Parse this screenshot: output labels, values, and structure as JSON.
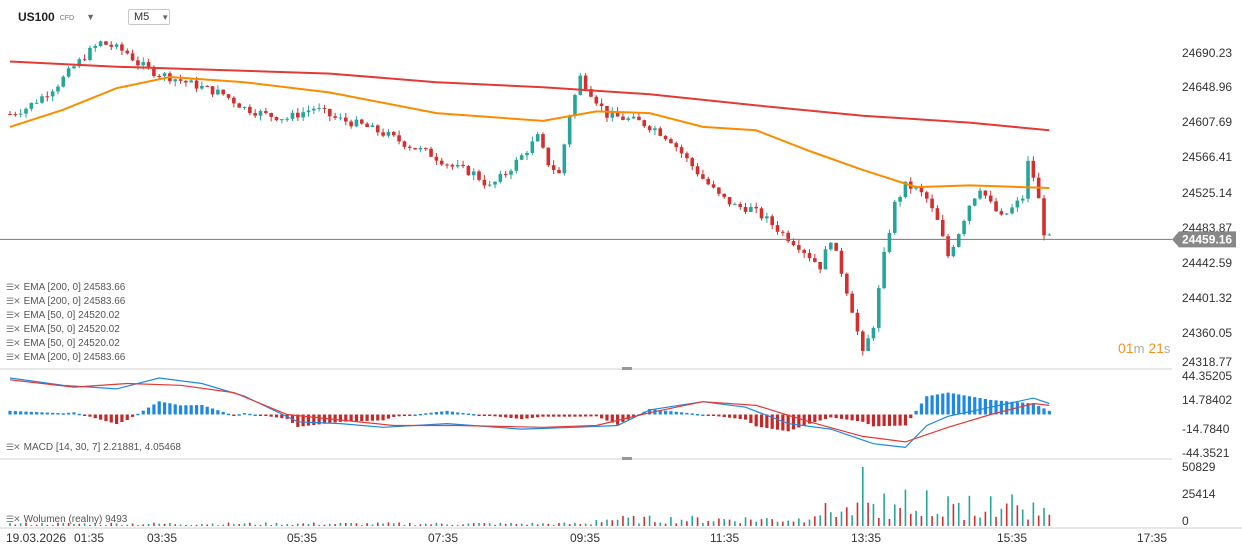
{
  "header": {
    "symbol": "US100",
    "symbol_tag": "CFD",
    "timeframe": "M5"
  },
  "countdown": {
    "minutes": "01",
    "m_unit": "m",
    "seconds": "21",
    "s_unit": "s"
  },
  "legend": {
    "ema": [
      "EMA [200, 0]  24583.66",
      "EMA [200, 0]  24583.66",
      "EMA [50, 0]  24520.02",
      "EMA [50, 0]  24520.02",
      "EMA [50, 0]  24520.02",
      "EMA [200, 0]  24583.66"
    ],
    "macd": "MACD [14, 30, 7]  2.21881,  4.05468",
    "volume": "Wolumen (realny)  9493"
  },
  "colors": {
    "up": "#26a69a",
    "down": "#d32f2f",
    "ema200": "#e53935",
    "ema50": "#fb8c00",
    "macd": "#1e88e5",
    "signal": "#e53935",
    "hist_pos": "#1e88e5",
    "hist_neg": "#c62828"
  },
  "chart_data": {
    "type": "candlestick",
    "symbol": "US100",
    "timeframe": "M5",
    "x_ticks": [
      "19.03.2026",
      "01:35",
      "03:35",
      "05:35",
      "07:35",
      "09:35",
      "11:35",
      "13:35",
      "15:35",
      "17:35"
    ],
    "price_ticks": [
      "24690.23",
      "24648.96",
      "24607.69",
      "24566.41",
      "24525.14",
      "24483.87",
      "24442.59",
      "24401.32",
      "24360.05",
      "24318.77"
    ],
    "price_range": [
      24312,
      24705
    ],
    "current_price": "24459.16",
    "price_path": [
      [
        0,
        24605
      ],
      [
        3,
        24612
      ],
      [
        6,
        24625
      ],
      [
        9,
        24640
      ],
      [
        12,
        24660
      ],
      [
        15,
        24678
      ],
      [
        17,
        24688
      ],
      [
        19,
        24684
      ],
      [
        22,
        24676
      ],
      [
        24,
        24664
      ],
      [
        27,
        24654
      ],
      [
        31,
        24646
      ],
      [
        36,
        24636
      ],
      [
        40,
        24628
      ],
      [
        44,
        24612
      ],
      [
        48,
        24604
      ],
      [
        52,
        24600
      ],
      [
        57,
        24612
      ],
      [
        61,
        24600
      ],
      [
        66,
        24592
      ],
      [
        71,
        24580
      ],
      [
        75,
        24568
      ],
      [
        79,
        24558
      ],
      [
        83,
        24544
      ],
      [
        87,
        24536
      ],
      [
        90,
        24520
      ],
      [
        93,
        24536
      ],
      [
        96,
        24556
      ],
      [
        99,
        24578
      ],
      [
        100,
        24562
      ],
      [
        101,
        24548
      ],
      [
        103,
        24535
      ],
      [
        105,
        24605
      ],
      [
        107,
        24648
      ],
      [
        109,
        24630
      ],
      [
        112,
        24604
      ],
      [
        115,
        24600
      ],
      [
        118,
        24596
      ],
      [
        121,
        24588
      ],
      [
        124,
        24575
      ],
      [
        127,
        24552
      ],
      [
        130,
        24530
      ],
      [
        133,
        24510
      ],
      [
        136,
        24498
      ],
      [
        139,
        24495
      ],
      [
        142,
        24482
      ],
      [
        145,
        24466
      ],
      [
        148,
        24452
      ],
      [
        150,
        24440
      ],
      [
        152,
        24428
      ],
      [
        154,
        24460
      ],
      [
        156,
        24422
      ],
      [
        158,
        24378
      ],
      [
        160,
        24325
      ],
      [
        162,
        24360
      ],
      [
        164,
        24440
      ],
      [
        166,
        24500
      ],
      [
        168,
        24522
      ],
      [
        170,
        24518
      ],
      [
        172,
        24506
      ],
      [
        174,
        24480
      ],
      [
        176,
        24440
      ],
      [
        178,
        24468
      ],
      [
        180,
        24500
      ],
      [
        182,
        24520
      ],
      [
        184,
        24500
      ],
      [
        186,
        24484
      ],
      [
        188,
        24495
      ],
      [
        190,
        24508
      ],
      [
        191,
        24548
      ],
      [
        192,
        24532
      ],
      [
        193,
        24505
      ],
      [
        194,
        24468
      ],
      [
        195,
        24460
      ]
    ],
    "ema200_path": [
      [
        0,
        24666
      ],
      [
        20,
        24660
      ],
      [
        40,
        24656
      ],
      [
        60,
        24652
      ],
      [
        80,
        24642
      ],
      [
        100,
        24636
      ],
      [
        120,
        24628
      ],
      [
        140,
        24615
      ],
      [
        160,
        24603
      ],
      [
        180,
        24595
      ],
      [
        195,
        24586
      ]
    ],
    "ema50_path": [
      [
        0,
        24590
      ],
      [
        10,
        24610
      ],
      [
        20,
        24635
      ],
      [
        30,
        24648
      ],
      [
        44,
        24642
      ],
      [
        60,
        24630
      ],
      [
        80,
        24606
      ],
      [
        100,
        24597
      ],
      [
        110,
        24608
      ],
      [
        120,
        24606
      ],
      [
        130,
        24590
      ],
      [
        140,
        24586
      ],
      [
        150,
        24562
      ],
      [
        160,
        24540
      ],
      [
        170,
        24520
      ],
      [
        180,
        24522
      ],
      [
        190,
        24520
      ],
      [
        195,
        24519
      ]
    ],
    "macd_ticks": [
      "44.35205",
      "14.78402",
      "-14.7840",
      "-44.3521"
    ],
    "macd_range": [
      -44.3521,
      44.35205
    ],
    "macd_path": [
      [
        0,
        40
      ],
      [
        10,
        32
      ],
      [
        20,
        28
      ],
      [
        28,
        40
      ],
      [
        36,
        34
      ],
      [
        44,
        20
      ],
      [
        54,
        -8
      ],
      [
        62,
        -10
      ],
      [
        70,
        -14
      ],
      [
        82,
        -10
      ],
      [
        96,
        -16
      ],
      [
        106,
        -14
      ],
      [
        114,
        -12
      ],
      [
        120,
        5
      ],
      [
        130,
        14
      ],
      [
        138,
        8
      ],
      [
        146,
        -10
      ],
      [
        154,
        -16
      ],
      [
        162,
        -32
      ],
      [
        168,
        -36
      ],
      [
        172,
        -12
      ],
      [
        176,
        -2
      ],
      [
        184,
        8
      ],
      [
        192,
        18
      ],
      [
        195,
        12
      ]
    ],
    "signal_path": [
      [
        0,
        38
      ],
      [
        12,
        30
      ],
      [
        22,
        34
      ],
      [
        32,
        32
      ],
      [
        42,
        24
      ],
      [
        52,
        0
      ],
      [
        62,
        -6
      ],
      [
        72,
        -12
      ],
      [
        84,
        -12
      ],
      [
        100,
        -14
      ],
      [
        110,
        -12
      ],
      [
        120,
        2
      ],
      [
        130,
        14
      ],
      [
        140,
        10
      ],
      [
        150,
        -8
      ],
      [
        160,
        -24
      ],
      [
        168,
        -30
      ],
      [
        176,
        -14
      ],
      [
        184,
        0
      ],
      [
        192,
        12
      ],
      [
        195,
        10
      ]
    ],
    "volume_ticks": [
      "50829",
      "25414",
      "0"
    ],
    "volume_max": 50829,
    "volume_last": 9493,
    "bar_count": 196
  }
}
